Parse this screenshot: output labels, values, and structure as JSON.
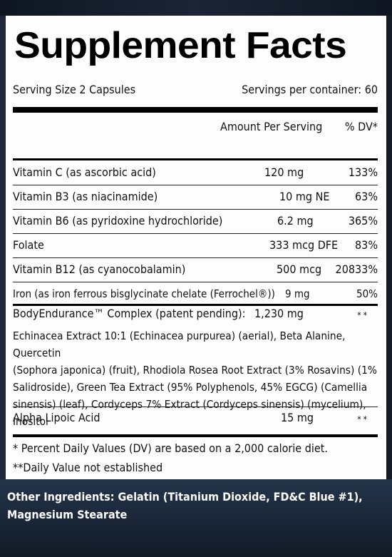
{
  "title": "Supplement Facts",
  "serving_size": "Serving Size 2 Capsules",
  "servings_per_container": "Servings per container: 60",
  "header": {
    "amount": "Amount Per Serving",
    "dv": "% DV*"
  },
  "nutrients": [
    {
      "name": "Vitamin C (as ascorbic acid)",
      "amount": "120 mg",
      "dv": "133%"
    },
    {
      "name": "Vitamin B3 (as niacinamide)",
      "amount": "10 mg NE",
      "dv": "63%"
    },
    {
      "name": "Vitamin B6 (as pyridoxine hydrochloride)",
      "amount": "6.2 mg",
      "dv": "365%"
    },
    {
      "name": "Folate",
      "amount": "333 mcg DFE",
      "dv": "83%"
    },
    {
      "name": "Vitamin B12 (as cyanocobalamin)",
      "amount": "500 mcg",
      "dv": "20833%"
    },
    {
      "name": "Iron (as iron ferrous bisglycinate chelate (Ferrochel®))",
      "amount": "9 mg",
      "dv": "50%"
    }
  ],
  "complex": {
    "name": "BodyEndurance™ Complex (patent pending):",
    "amount": "1,230 mg",
    "dv": "**",
    "description": "Echinacea Extract 10:1 (Echinacea purpurea) (aerial), Beta Alanine, Quercetin\n(Sophora japonica) (fruit), Rhodiola Rosea Root Extract (3% Rosavins) (1%\nSalidroside), Green Tea Extract (95% Polyphenols, 45% EGCG) (Camellia\nsinensis) (leaf), Cordyceps 7% Extract (Cordyceps sinensis) (mycelium), Inositol"
  },
  "alpha_lipoic": {
    "name": "Alpha Lipoic Acid",
    "amount": "15 mg",
    "dv": "**"
  },
  "footnotes": {
    "dv_note": "* Percent Daily Values (DV) are based on a 2,000 calorie diet.",
    "not_established": "**Daily Value not established"
  },
  "other_ingredients": "Other Ingredients: Gelatin (Titanium Dioxide, FD&C Blue #1), Magnesium Stearate"
}
